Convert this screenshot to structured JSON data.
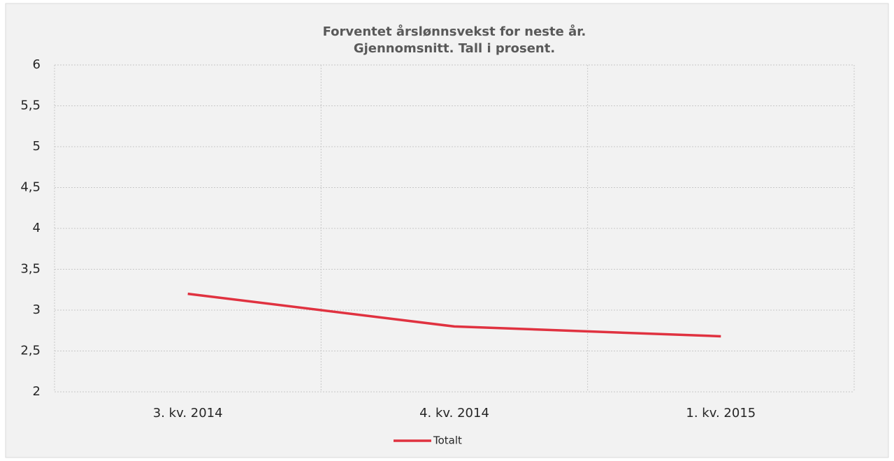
{
  "chart_data": {
    "type": "line",
    "title": "Forventet årslønnsvekst for neste år.",
    "subtitle": "Gjennomsnitt. Tall i prosent.",
    "categories": [
      "3. kv. 2014",
      "4. kv. 2014",
      "1. kv. 2015"
    ],
    "series": [
      {
        "name": "Totalt",
        "color": "#e03240",
        "values": [
          3.2,
          2.8,
          2.68
        ]
      }
    ],
    "ylim": [
      2,
      6
    ],
    "yticks": [
      2,
      {
        "value": 2.5,
        "label": "2,5"
      },
      3,
      {
        "value": 3.5,
        "label": "3,5"
      },
      4,
      {
        "value": 4.5,
        "label": "4,5"
      },
      5,
      {
        "value": 5.5,
        "label": "5,5"
      },
      6
    ],
    "grid": true,
    "legend": "bottom"
  }
}
